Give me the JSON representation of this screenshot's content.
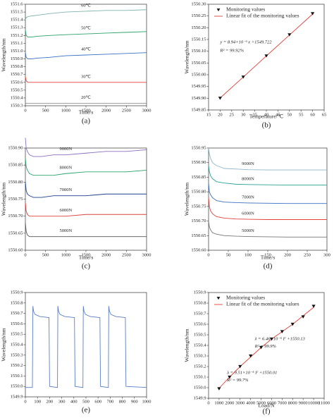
{
  "chart_data": [
    {
      "type": "line",
      "caption": "(a)",
      "xlabel": "Time/s",
      "ylabel": "Wavelength/nm",
      "xlim": [
        0,
        3000
      ],
      "xticks": [
        0,
        500,
        1000,
        1500,
        2000,
        2500,
        3000
      ],
      "ylim": [
        1550.3,
        1551.6
      ],
      "yticks": [
        1550.3,
        1550.4,
        1550.5,
        1550.6,
        1550.7,
        1550.8,
        1550.9,
        {
          "value": 1551.0,
          "label": "1551.0"
        },
        1551.1,
        1551.2,
        1551.3,
        1551.4,
        1551.5,
        1551.6
      ],
      "x": [
        0,
        20,
        60,
        150,
        300,
        600,
        1000,
        1500,
        2000,
        2500,
        3000
      ],
      "series": [
        {
          "name": "60℃",
          "color": "#7fb3ad",
          "values": [
            1551.4,
            1551.43,
            1551.44,
            1551.45,
            1551.46,
            1551.48,
            1551.5,
            1551.51,
            1551.52,
            1551.52,
            1551.53
          ]
        },
        {
          "name": "50℃",
          "color": "#2aa36a",
          "values": [
            1551.27,
            1551.2,
            1551.18,
            1551.18,
            1551.19,
            1551.2,
            1551.21,
            1551.22,
            1551.23,
            1551.24,
            1551.25
          ]
        },
        {
          "name": "40℃",
          "color": "#3a6fc4",
          "values": [
            1550.98,
            1550.92,
            1550.9,
            1550.9,
            1550.91,
            1550.92,
            1550.94,
            1550.95,
            1550.96,
            1550.97,
            1550.98
          ]
        },
        {
          "name": "30℃",
          "color": "#e0403a",
          "values": [
            1550.67,
            1550.62,
            1550.6,
            1550.6,
            1550.6,
            1550.6,
            1550.6,
            1550.6,
            1550.6,
            1550.6,
            1550.6
          ]
        },
        {
          "name": "20℃",
          "color": "#888888",
          "values": [
            1550.34,
            1550.33,
            1550.33,
            1550.33,
            1550.33,
            1550.33,
            1550.33,
            1550.33,
            1550.33,
            1550.33,
            1550.33
          ]
        }
      ]
    },
    {
      "type": "scatter",
      "caption": "(b)",
      "xlabel": "Temperature/℃",
      "ylabel": "Wavelength/nm",
      "xlim": [
        15,
        65
      ],
      "xticks": [
        15,
        20,
        25,
        30,
        35,
        40,
        45,
        50,
        55,
        60,
        65
      ],
      "ylim": [
        1549.85,
        1550.3
      ],
      "yticks": [
        1549.85,
        {
          "value": 1549.9,
          "label": "1549.90"
        },
        1549.95,
        {
          "value": 1550.0,
          "label": "1550.00"
        },
        1550.05,
        {
          "value": 1550.1,
          "label": "1550.10"
        },
        1550.15,
        {
          "value": 1550.2,
          "label": "1550.20"
        },
        1550.25,
        {
          "value": 1550.3,
          "label": "1550.30"
        }
      ],
      "x": [
        20,
        30,
        40,
        50,
        60
      ],
      "series": [
        {
          "name": "Monitoring values",
          "color": "#111111",
          "mode": "markers",
          "values": [
            1549.9,
            1549.99,
            1550.08,
            1550.17,
            1550.26
          ]
        },
        {
          "name": "Linear fit of the monitoring values",
          "color": "#e0403a",
          "mode": "line",
          "values": [
            1549.901,
            1549.99,
            1550.08,
            1550.169,
            1550.258
          ]
        }
      ],
      "legend": "upper left",
      "annotations": [
        "y = 8.94×10⁻³ x +1549.722",
        "R² = 99.92%"
      ]
    },
    {
      "type": "line",
      "caption": "(c)",
      "xlabel": "Time/s",
      "ylabel": "Wavelength/nm",
      "xlim": [
        0,
        3000
      ],
      "xticks": [
        0,
        500,
        1000,
        1500,
        2000,
        2500,
        3000
      ],
      "ylim": [
        1550.6,
        1550.9
      ],
      "yticks": [
        {
          "value": 1550.6,
          "label": "1550.60"
        },
        1550.65,
        {
          "value": 1550.7,
          "label": "1550.70"
        },
        1550.75,
        {
          "value": 1550.8,
          "label": "1550.80"
        },
        1550.85,
        {
          "value": 1550.9,
          "label": "1550.90"
        }
      ],
      "x": [
        0,
        20,
        50,
        100,
        200,
        400,
        700,
        1000,
        1500,
        2000,
        2500,
        3000
      ],
      "series": [
        {
          "name": "9000N",
          "color": "#8a6fbf",
          "values": [
            1550.93,
            1550.9,
            1550.89,
            1550.88,
            1550.875,
            1550.875,
            1550.88,
            1550.88,
            1550.885,
            1550.89,
            1550.89,
            1550.895
          ]
        },
        {
          "name": "8000N",
          "color": "#2aa36a",
          "values": [
            1550.87,
            1550.845,
            1550.835,
            1550.825,
            1550.82,
            1550.82,
            1550.82,
            1550.825,
            1550.83,
            1550.83,
            1550.83,
            1550.835
          ]
        },
        {
          "name": "7000N",
          "color": "#1f3f8f",
          "values": [
            1550.8,
            1550.775,
            1550.765,
            1550.76,
            1550.755,
            1550.755,
            1550.76,
            1550.76,
            1550.76,
            1550.765,
            1550.765,
            1550.765
          ]
        },
        {
          "name": "6000N",
          "color": "#e0403a",
          "values": [
            1550.74,
            1550.715,
            1550.705,
            1550.7,
            1550.7,
            1550.7,
            1550.7,
            1550.7,
            1550.705,
            1550.705,
            1550.705,
            1550.705
          ]
        },
        {
          "name": "5000N",
          "color": "#555555",
          "values": [
            1550.68,
            1550.655,
            1550.645,
            1550.64,
            1550.64,
            1550.64,
            1550.64,
            1550.64,
            1550.64,
            1550.64,
            1550.64,
            1550.64
          ]
        }
      ]
    },
    {
      "type": "line",
      "caption": "(d)",
      "xlabel": "Time/s",
      "ylabel": "Wavelength/nm",
      "xlim": [
        0,
        300
      ],
      "xticks": [
        0,
        50,
        100,
        150,
        200,
        250,
        300
      ],
      "ylim": [
        1550.6,
        1550.95
      ],
      "yticks": [
        {
          "value": 1550.6,
          "label": "1550.60"
        },
        1550.65,
        {
          "value": 1550.7,
          "label": "1550.70"
        },
        1550.75,
        {
          "value": 1550.8,
          "label": "1550.80"
        },
        1550.85,
        {
          "value": 1550.9,
          "label": "1550.90"
        },
        1550.95
      ],
      "x": [
        0,
        2,
        5,
        10,
        20,
        40,
        70,
        100,
        150,
        200,
        250,
        300
      ],
      "series": [
        {
          "name": "9000N",
          "color": "#8fb7c9",
          "values": [
            1550.95,
            1550.93,
            1550.915,
            1550.9,
            1550.89,
            1550.88,
            1550.878,
            1550.876,
            1550.875,
            1550.875,
            1550.875,
            1550.875
          ]
        },
        {
          "name": "8000N",
          "color": "#2aa39a",
          "values": [
            1550.89,
            1550.87,
            1550.855,
            1550.845,
            1550.835,
            1550.83,
            1550.826,
            1550.825,
            1550.824,
            1550.823,
            1550.823,
            1550.823
          ]
        },
        {
          "name": "7000N",
          "color": "#3a6fc4",
          "values": [
            1550.83,
            1550.8,
            1550.79,
            1550.78,
            1550.77,
            1550.765,
            1550.763,
            1550.762,
            1550.761,
            1550.76,
            1550.76,
            1550.76
          ]
        },
        {
          "name": "6000N",
          "color": "#e0403a",
          "values": [
            1550.78,
            1550.75,
            1550.735,
            1550.725,
            1550.715,
            1550.71,
            1550.707,
            1550.706,
            1550.705,
            1550.705,
            1550.705,
            1550.705
          ]
        },
        {
          "name": "5000N",
          "color": "#777777",
          "values": [
            1550.7,
            1550.68,
            1550.67,
            1550.66,
            1550.655,
            1550.65,
            1550.648,
            1550.647,
            1550.646,
            1550.645,
            1550.645,
            1550.645
          ]
        }
      ]
    },
    {
      "type": "line",
      "caption": "(e)",
      "ylabel": "Wavelength/nm",
      "xlim": [
        0,
        1000
      ],
      "xticks": [
        0,
        100,
        200,
        300,
        400,
        500,
        600,
        700,
        800,
        900,
        1000
      ],
      "ylim": [
        1549.9,
        1550.9
      ],
      "yticks": [
        1549.9,
        {
          "value": 1550.0,
          "label": "1550.0"
        },
        1550.1,
        1550.2,
        1550.3,
        1550.4,
        1550.5,
        1550.6,
        1550.7,
        1550.8,
        1550.9
      ],
      "x": [
        0,
        58,
        62,
        68,
        80,
        120,
        195,
        200,
        265,
        268,
        274,
        286,
        326,
        405,
        410,
        475,
        478,
        484,
        496,
        536,
        615,
        620,
        685,
        688,
        694,
        706,
        746,
        825,
        830,
        1000
      ],
      "color": "#5b7fc8",
      "values": [
        1549.99,
        1549.99,
        1550.77,
        1550.72,
        1550.69,
        1550.67,
        1550.66,
        1550.0,
        1549.99,
        1550.77,
        1550.72,
        1550.69,
        1550.67,
        1550.66,
        1550.0,
        1549.99,
        1550.77,
        1550.72,
        1550.69,
        1550.67,
        1550.66,
        1550.0,
        1549.99,
        1550.77,
        1550.72,
        1550.69,
        1550.67,
        1550.66,
        1550.0,
        1549.99
      ]
    },
    {
      "type": "scatter",
      "caption": "(f)",
      "xlabel": "Load/N",
      "ylabel": "Wavelength/nm",
      "xlim": [
        0,
        11000
      ],
      "xticks": [
        0,
        1000,
        2000,
        3000,
        4000,
        5000,
        6000,
        7000,
        8000,
        9000,
        10000,
        11000
      ],
      "ylim": [
        1549.9,
        1550.9
      ],
      "yticks": [
        1549.9,
        {
          "value": 1550.0,
          "label": "1550.0"
        },
        1550.1,
        1550.2,
        1550.3,
        1550.4,
        1550.5,
        1550.6,
        1550.7,
        1550.8,
        1550.9
      ],
      "x": [
        1000,
        2000,
        3000,
        4000,
        5000,
        6000,
        7000,
        8000,
        9000,
        10000
      ],
      "series": [
        {
          "name": "Monitoring values",
          "color": "#111111",
          "mode": "markers",
          "values": [
            1549.99,
            1550.1,
            1550.2,
            1550.3,
            1550.38,
            1550.46,
            1550.53,
            1550.6,
            1550.67,
            1550.77
          ]
        },
        {
          "name": "Linear fit of the monitoring values",
          "color": "#e0403a",
          "mode": "line",
          "values": [
            1549.995,
            1550.1,
            1550.2,
            1550.29,
            1550.38,
            1550.46,
            1550.53,
            1550.6,
            1550.68,
            1550.76
          ]
        }
      ],
      "legend": "upper left",
      "annotations": [
        "λ = 6.46×10⁻⁵ F +1550.13",
        "R² = 99.9%",
        "λ = 9.51×10⁻⁵ F +1550.01",
        "R² = 99.7%"
      ]
    }
  ]
}
